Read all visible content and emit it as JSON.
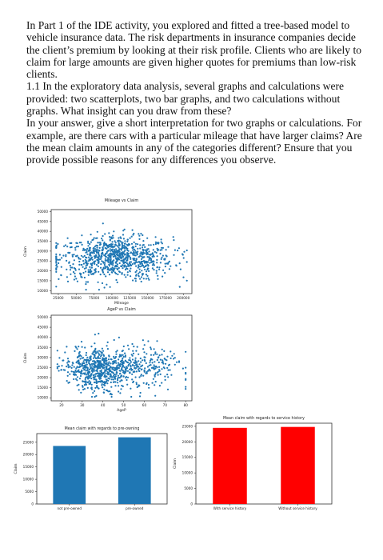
{
  "question": {
    "intro": "In Part 1 of the IDE activity, you explored and fitted a tree-based model to vehicle insurance data. The risk departments in insurance companies decide the client’s premium by looking at their risk profile. Clients who are likely to claim for large amounts are given higher quotes for premiums than low-risk clients.",
    "task": "1.1 In the exploratory data analysis, several graphs and calculations were provided: two scatterplots, two bar graphs, and two calculations without graphs. What insight can you draw from these?",
    "instruction": "In your answer, give a short interpretation for two graphs or calculations. For example, are there cars with a particular mileage that have larger claims? Are the mean claim amounts in any of the categories different? Ensure that you provide possible reasons for any differences you observe."
  },
  "chart_data": [
    {
      "type": "scatter",
      "title": "Mileage vs Claim",
      "xlabel": "Mileage",
      "ylabel": "Claim",
      "xlim": [
        15000,
        212000
      ],
      "ylim": [
        8500,
        51000
      ],
      "xticks": [
        "25000",
        "50000",
        "75000",
        "100000",
        "125000",
        "150000",
        "175000",
        "200000"
      ],
      "yticks": [
        "10000",
        "15000",
        "20000",
        "25000",
        "30000",
        "35000",
        "40000",
        "45000",
        "50000"
      ],
      "color": "#1f77b4",
      "points": []
    },
    {
      "type": "scatter",
      "title": "AgeP vs Claim",
      "xlabel": "AgeP",
      "ylabel": "Claim",
      "xlim": [
        15,
        83
      ],
      "ylim": [
        8500,
        51000
      ],
      "xticks": [
        "20",
        "30",
        "40",
        "50",
        "60",
        "70",
        "80"
      ],
      "yticks": [
        "10000",
        "15000",
        "20000",
        "25000",
        "30000",
        "35000",
        "40000",
        "45000",
        "50000"
      ],
      "color": "#1f77b4",
      "points": []
    },
    {
      "type": "bar",
      "title": "Mean claim with regards to pre-owning",
      "categories": [
        "not pre-owned",
        "pre-owned"
      ],
      "values": [
        23500,
        27000
      ],
      "ylabel": "Claim",
      "ylim": [
        0,
        28500
      ],
      "yticks": [
        "0",
        "5000",
        "10000",
        "15000",
        "20000",
        "25000"
      ],
      "color": "#1f77b4"
    },
    {
      "type": "bar",
      "title": "Mean claim with regards to service history",
      "categories": [
        "With service history",
        "Without service history"
      ],
      "values": [
        24500,
        24800
      ],
      "ylabel": "Claim",
      "ylim": [
        0,
        26000
      ],
      "yticks": [
        "0",
        "5000",
        "10000",
        "15000",
        "20000",
        "25000"
      ],
      "color": "#ff0000"
    }
  ]
}
